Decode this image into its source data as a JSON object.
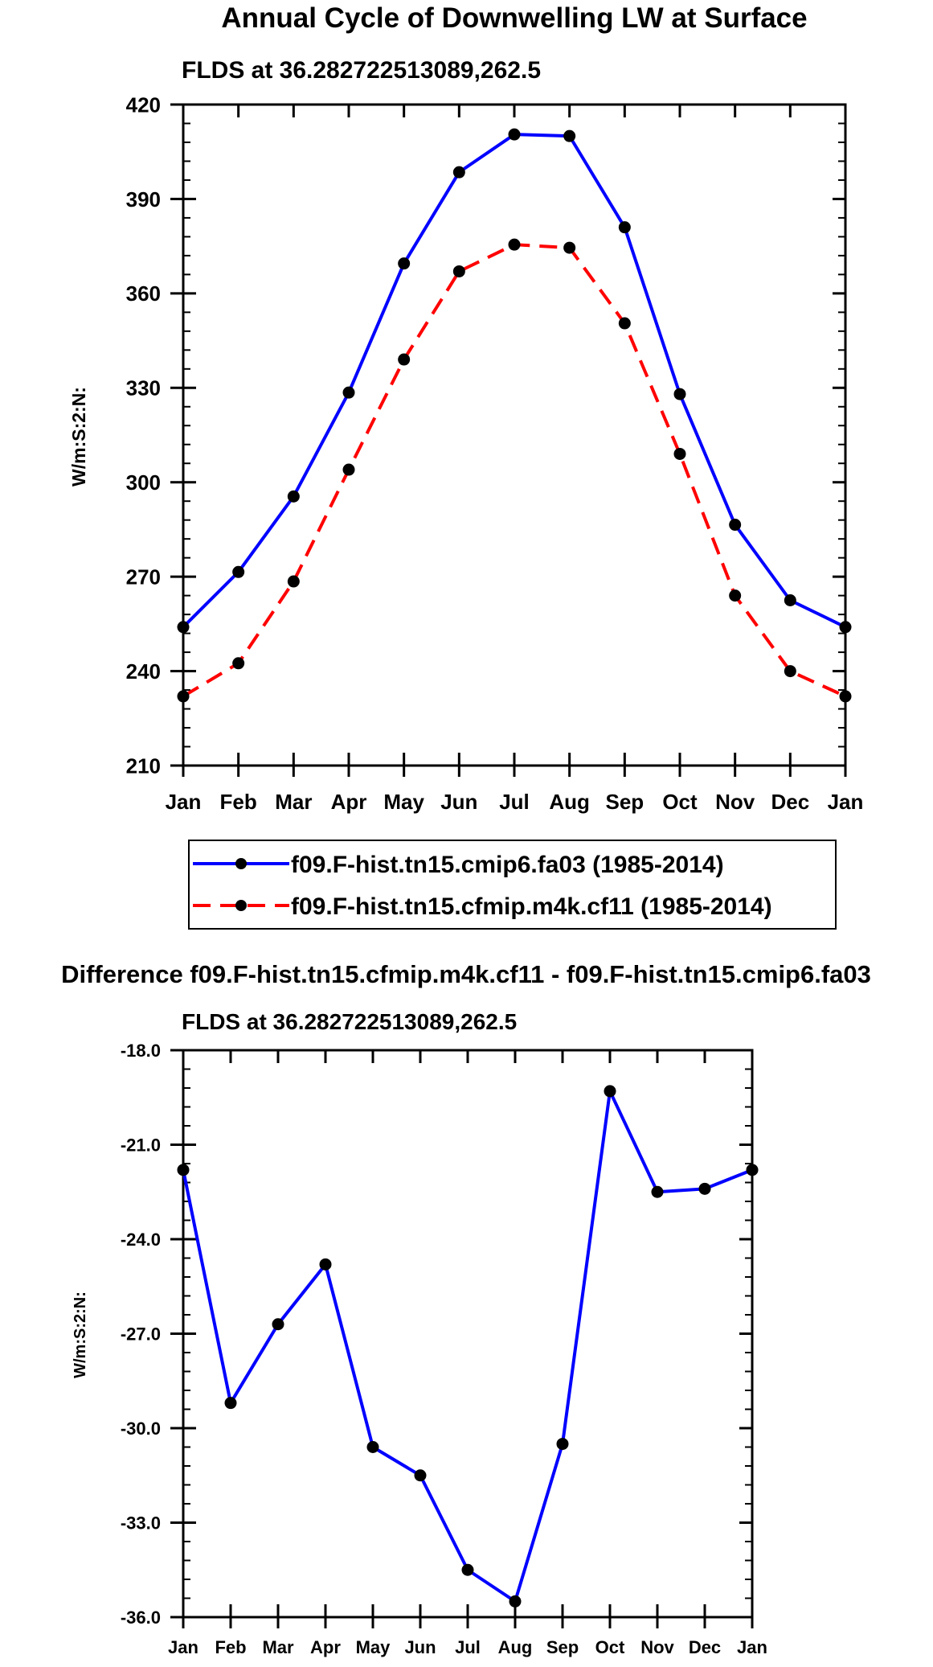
{
  "chart_data": [
    {
      "type": "line",
      "title": "Annual Cycle of Downwelling LW at Surface",
      "subtitle": "FLDS at 36.282722513089,262.5",
      "ylabel": "W/m:S:2:N:",
      "xlabel": "",
      "categories": [
        "Jan",
        "Feb",
        "Mar",
        "Apr",
        "May",
        "Jun",
        "Jul",
        "Aug",
        "Sep",
        "Oct",
        "Nov",
        "Dec",
        "Jan"
      ],
      "ylim": [
        210,
        420
      ],
      "yticks": [
        210,
        240,
        270,
        300,
        330,
        360,
        390,
        420
      ],
      "ytick_labels": [
        "210",
        "240",
        "270",
        "300",
        "330",
        "360",
        "390",
        "420"
      ],
      "legend_position": "bottom-center",
      "series": [
        {
          "name": "f09.F-hist.tn15.cmip6.fa03 (1985-2014)",
          "color": "#0000ff",
          "dash": "solid",
          "values": [
            254,
            271.5,
            295.5,
            328.5,
            369.5,
            398.5,
            410.5,
            410,
            381,
            328,
            286.5,
            262.5,
            254
          ]
        },
        {
          "name": "f09.F-hist.tn15.cfmip.m4k.cf11 (1985-2014)",
          "color": "#ff0000",
          "dash": "dashed",
          "values": [
            232,
            242.5,
            268.5,
            304,
            339,
            367,
            375.5,
            374.5,
            350.5,
            309,
            264,
            240,
            232
          ]
        }
      ]
    },
    {
      "type": "line",
      "title": "Difference f09.F-hist.tn15.cfmip.m4k.cf11 - f09.F-hist.tn15.cmip6.fa03",
      "subtitle": "FLDS at 36.282722513089,262.5",
      "ylabel": "W/m:S:2:N:",
      "xlabel": "",
      "categories": [
        "Jan",
        "Feb",
        "Mar",
        "Apr",
        "May",
        "Jun",
        "Jul",
        "Aug",
        "Sep",
        "Oct",
        "Nov",
        "Dec",
        "Jan"
      ],
      "ylim": [
        -36,
        -18
      ],
      "yticks": [
        -36,
        -33,
        -30,
        -27,
        -24,
        -21,
        -18
      ],
      "ytick_labels": [
        "-36.0",
        "-33.0",
        "-30.0",
        "-27.0",
        "-24.0",
        "-21.0",
        "-18.0"
      ],
      "series": [
        {
          "name": "difference",
          "color": "#0000ff",
          "dash": "solid",
          "values": [
            -21.8,
            -29.2,
            -26.7,
            -24.8,
            -30.6,
            -31.5,
            -34.5,
            -35.5,
            -30.5,
            -19.3,
            -22.5,
            -22.4,
            -21.8
          ]
        }
      ]
    }
  ]
}
